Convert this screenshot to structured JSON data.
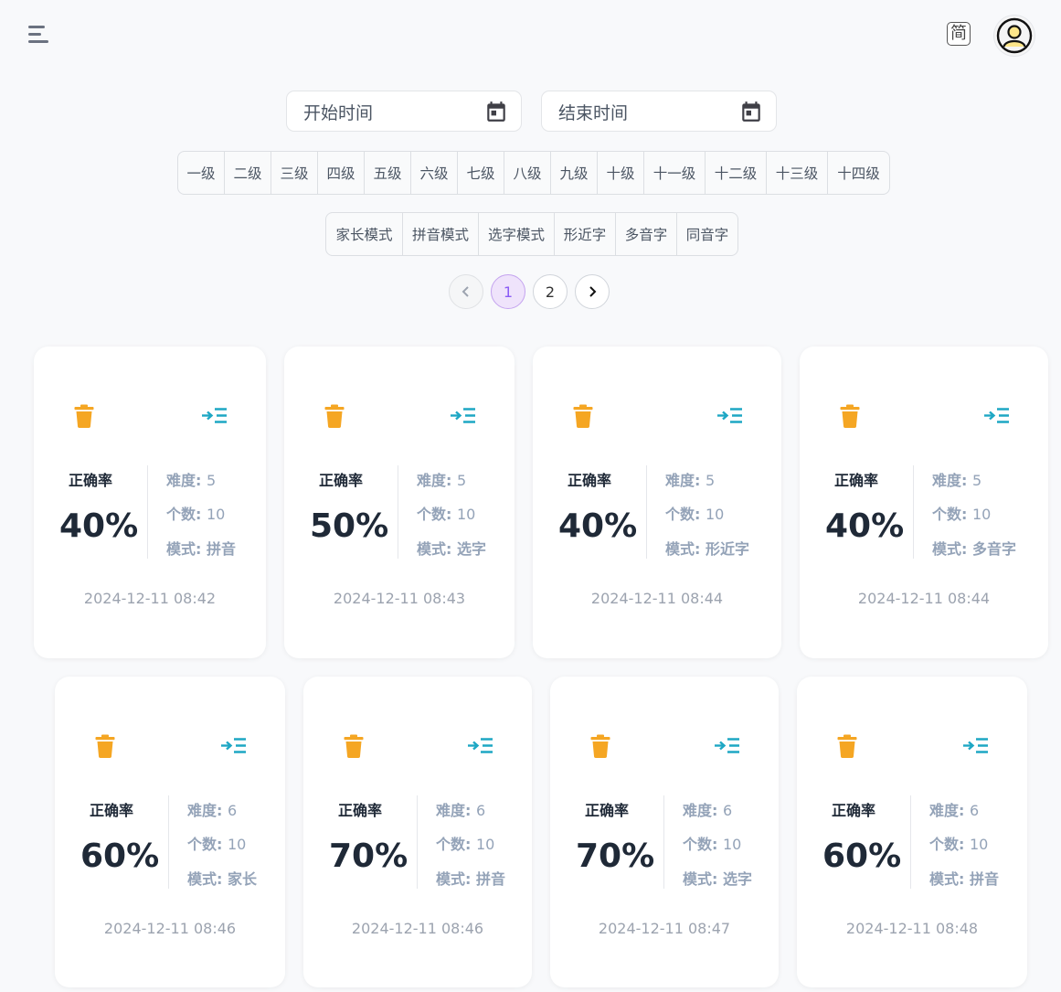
{
  "header": {
    "lang_label": "简"
  },
  "filters": {
    "start_placeholder": "开始时间",
    "end_placeholder": "结束时间",
    "grades": [
      "一级",
      "二级",
      "三级",
      "四级",
      "五级",
      "六级",
      "七级",
      "八级",
      "九级",
      "十级",
      "十一级",
      "十二级",
      "十三级",
      "十四级"
    ],
    "modes": [
      "家长模式",
      "拼音模式",
      "选字模式",
      "形近字",
      "多音字",
      "同音字"
    ]
  },
  "pagination": {
    "pages": [
      "1",
      "2"
    ],
    "current": "1"
  },
  "labels": {
    "accuracy": "正确率",
    "difficulty": "难度",
    "count": "个数",
    "mode": "模式"
  },
  "records": [
    {
      "accuracy": "40%",
      "difficulty": "5",
      "count": "10",
      "mode": "拼音",
      "time": "2024-12-11 08:42"
    },
    {
      "accuracy": "50%",
      "difficulty": "5",
      "count": "10",
      "mode": "选字",
      "time": "2024-12-11 08:43"
    },
    {
      "accuracy": "40%",
      "difficulty": "5",
      "count": "10",
      "mode": "形近字",
      "time": "2024-12-11 08:44"
    },
    {
      "accuracy": "40%",
      "difficulty": "5",
      "count": "10",
      "mode": "多音字",
      "time": "2024-12-11 08:44"
    },
    {
      "accuracy": "60%",
      "difficulty": "6",
      "count": "10",
      "mode": "家长",
      "time": "2024-12-11 08:46"
    },
    {
      "accuracy": "70%",
      "difficulty": "6",
      "count": "10",
      "mode": "拼音",
      "time": "2024-12-11 08:46"
    },
    {
      "accuracy": "70%",
      "difficulty": "6",
      "count": "10",
      "mode": "选字",
      "time": "2024-12-11 08:47"
    },
    {
      "accuracy": "60%",
      "difficulty": "6",
      "count": "10",
      "mode": "拼音",
      "time": "2024-12-11 08:48"
    }
  ],
  "colors": {
    "trash": "#f5a623",
    "indent": "#1ea7c4",
    "accent": "#8b5cf6"
  }
}
